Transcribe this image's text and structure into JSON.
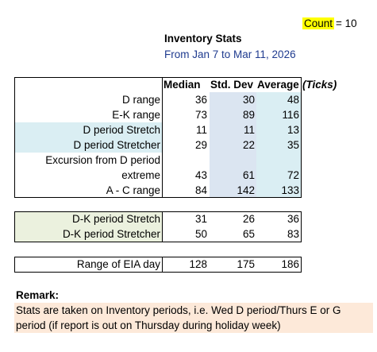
{
  "count": {
    "label": "Count",
    "eq": "= 10"
  },
  "header": {
    "title": "Inventory Stats",
    "subtitle": "From Jan 7 to Mar 11, 2026"
  },
  "columns": {
    "median": "Median",
    "std": "Std. Dev",
    "avg": "Average",
    "unit": "(Ticks)"
  },
  "table1": [
    {
      "label": "D range",
      "median": "36",
      "std": "30",
      "avg": "48"
    },
    {
      "label": "E-K range",
      "median": "73",
      "std": "89",
      "avg": "116"
    },
    {
      "label": "D period Stretch",
      "median": "11",
      "std": "11",
      "avg": "13"
    },
    {
      "label": "D period Stretcher",
      "median": "29",
      "std": "22",
      "avg": "35"
    },
    {
      "label": "Excursion from D period",
      "median": "",
      "std": "",
      "avg": ""
    },
    {
      "label": "extreme",
      "median": "43",
      "std": "61",
      "avg": "72"
    },
    {
      "label": "A - C range",
      "median": "84",
      "std": "142",
      "avg": "133"
    }
  ],
  "table2": [
    {
      "label": "D-K period Stretch",
      "median": "31",
      "std": "26",
      "avg": "36"
    },
    {
      "label": "D-K period Stretcher",
      "median": "50",
      "std": "65",
      "avg": "83"
    }
  ],
  "table3": [
    {
      "label": "Range of EIA day",
      "median": "128",
      "std": "175",
      "avg": "186"
    }
  ],
  "remark": {
    "title": "Remark:",
    "line1": "Stats are taken on Inventory periods, i.e. Wed D period/Thurs E or G",
    "line2": "period (if report is out on Thursday during holiday week)"
  },
  "colors": {
    "count_highlight": "#ffff00",
    "subtitle": "#1f3b8f",
    "blue_shade": "#dbe5f1",
    "lightblue_shade": "#daeef3",
    "olive_shade": "#ebf1de",
    "remark_shade": "#fde9d9"
  }
}
